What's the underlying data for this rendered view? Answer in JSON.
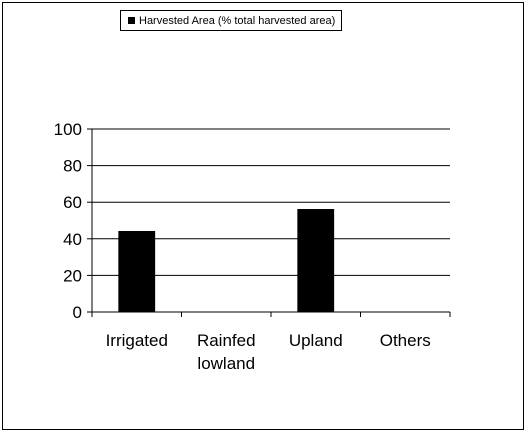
{
  "chart_data": {
    "type": "bar",
    "title": "",
    "xlabel": "",
    "ylabel": "",
    "categories": [
      [
        "Irrigated"
      ],
      [
        "Rainfed",
        "lowland"
      ],
      [
        "Upland"
      ],
      [
        "Others"
      ]
    ],
    "series": [
      {
        "name": "Harvested Area (% total harvested area)",
        "values": [
          44,
          0,
          56,
          0
        ],
        "color": "#000000"
      }
    ],
    "ylim": [
      0,
      100
    ],
    "yticks": [
      0,
      20,
      40,
      60,
      80,
      100
    ],
    "grid": true,
    "legend_position": "top"
  }
}
